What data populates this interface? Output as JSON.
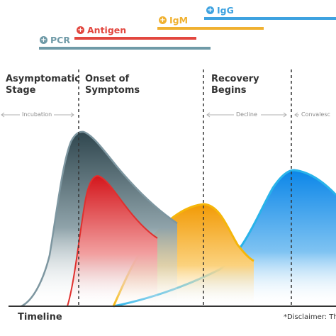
{
  "legend": {
    "pcr": {
      "label": "PCR",
      "color": "#6f9aa7"
    },
    "antigen": {
      "label": "Antigen",
      "color": "#e2473f"
    },
    "igm": {
      "label": "IgM",
      "color": "#f0b131"
    },
    "igg": {
      "label": "IgG",
      "color": "#3ea2e0"
    }
  },
  "stages": {
    "asymptomatic": [
      "Asymptomatic",
      "Stage"
    ],
    "onset": [
      "Onset of",
      "Symptoms"
    ],
    "recovery": [
      "Recovery",
      "Begins"
    ]
  },
  "phases": {
    "incubation": "Incubation",
    "decline": "Decline",
    "convalescence": "Convalesc"
  },
  "footer": {
    "timeline": "Timeline",
    "disclaimer": "*Disclaimer: Th"
  }
}
